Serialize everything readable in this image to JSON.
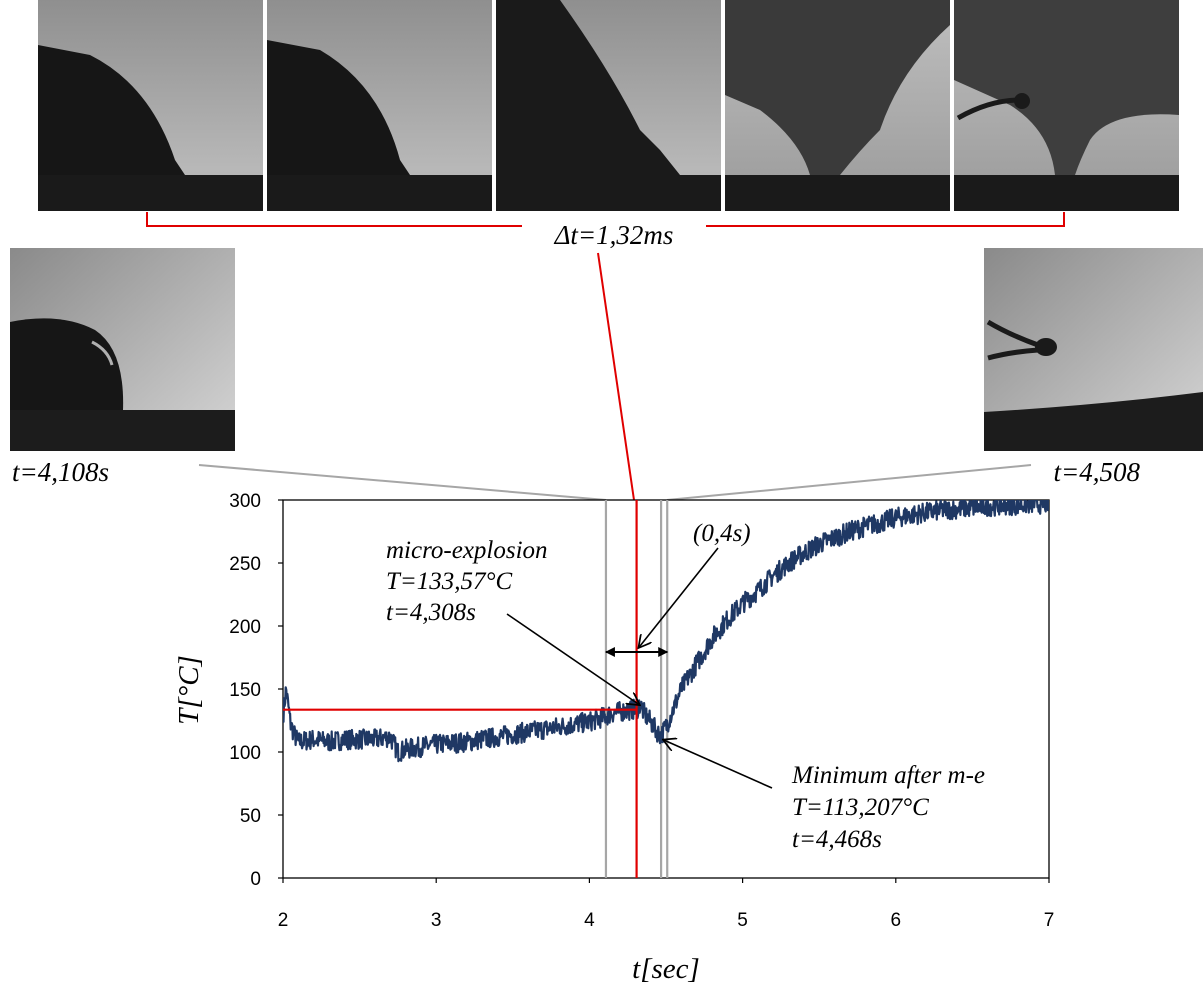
{
  "chart_data": {
    "type": "line",
    "xlabel": "t[sec]",
    "ylabel": "T[°C]",
    "xlim": [
      2,
      7
    ],
    "ylim": [
      0,
      300
    ],
    "xticks": [
      2,
      3,
      4,
      5,
      6,
      7
    ],
    "yticks": [
      0,
      50,
      100,
      150,
      200,
      250,
      300
    ],
    "grid": false,
    "series": [
      {
        "color": "#1f3864",
        "x": [
          2.0,
          2.02,
          2.05,
          2.08,
          2.1,
          2.2,
          2.3,
          2.4,
          2.5,
          2.6,
          2.7,
          2.75,
          2.8,
          2.9,
          3.0,
          3.1,
          3.2,
          3.3,
          3.4,
          3.5,
          3.6,
          3.7,
          3.8,
          3.9,
          4.0,
          4.05,
          4.1,
          4.15,
          4.2,
          4.25,
          4.3,
          4.308,
          4.33,
          4.36,
          4.4,
          4.43,
          4.45,
          4.468,
          4.5,
          4.55,
          4.6,
          4.7,
          4.8,
          4.9,
          5.0,
          5.1,
          5.2,
          5.3,
          5.4,
          5.5,
          5.6,
          5.7,
          5.8,
          5.9,
          6.0,
          6.1,
          6.2,
          6.3,
          6.4,
          6.5,
          6.6,
          6.7,
          6.8,
          6.9,
          7.0
        ],
        "y": [
          128,
          150,
          122,
          112,
          108,
          110,
          108,
          110,
          110,
          110,
          112,
          100,
          102,
          104,
          106,
          107,
          108,
          110,
          112,
          114,
          116,
          118,
          120,
          122,
          124,
          126,
          128,
          131,
          132,
          133,
          134,
          133.57,
          138,
          130,
          124,
          118,
          115,
          113.207,
          120,
          135,
          150,
          170,
          190,
          205,
          218,
          228,
          240,
          250,
          258,
          265,
          270,
          275,
          279,
          282,
          286,
          288,
          290,
          292,
          293,
          294,
          295,
          296,
          296,
          297,
          297
        ]
      }
    ],
    "reference_lines": {
      "hline_T": 133.57,
      "vline_red_t": 4.308,
      "vlines_gray_t": [
        4.108,
        4.468,
        4.508
      ]
    },
    "arrow_interval_t": [
      4.108,
      4.508
    ],
    "annotations": {
      "micro_explosion": [
        "micro-explosion",
        "T=133,57°C",
        "t=4,308s"
      ],
      "interval": "(0,4s)",
      "minimum": [
        "Minimum after m-e",
        "T=113,207°C",
        "t=4,468s"
      ],
      "left_frame_time": "t=4,108s",
      "right_frame_time": "t=4,508",
      "sequence_dt": "Δt=1,32ms"
    }
  },
  "colors": {
    "series": "#1f3864",
    "red": "#e00000",
    "gray": "#a6a6a6"
  }
}
